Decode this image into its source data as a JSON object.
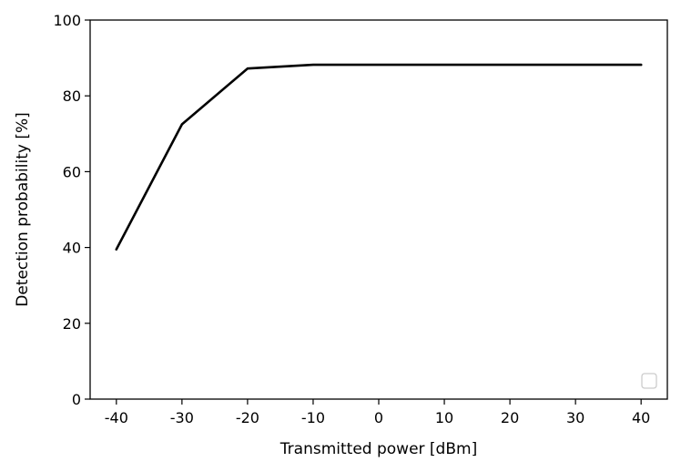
{
  "chart_data": {
    "type": "line",
    "title": "",
    "xlabel": "Transmitted power [dBm]",
    "ylabel": "Detection probability [%]",
    "xlim": [
      -44,
      44
    ],
    "ylim": [
      0,
      100
    ],
    "xticks": [
      -40,
      -30,
      -20,
      -10,
      0,
      10,
      20,
      30,
      40
    ],
    "xtick_labels": [
      "-40",
      "-30",
      "-20",
      "-10",
      "0",
      "10",
      "20",
      "30",
      "40"
    ],
    "yticks": [
      0,
      20,
      40,
      60,
      80,
      100
    ],
    "ytick_labels": [
      "0",
      "20",
      "40",
      "60",
      "80",
      "100"
    ],
    "grid": false,
    "legend": "lower-right (empty)",
    "series": [
      {
        "color": "#000000",
        "x": [
          -40,
          -30,
          -20,
          -10,
          0,
          10,
          20,
          30,
          40
        ],
        "y": [
          39.5,
          72.5,
          87.2,
          88.2,
          88.2,
          88.2,
          88.2,
          88.2,
          88.2
        ]
      }
    ]
  }
}
